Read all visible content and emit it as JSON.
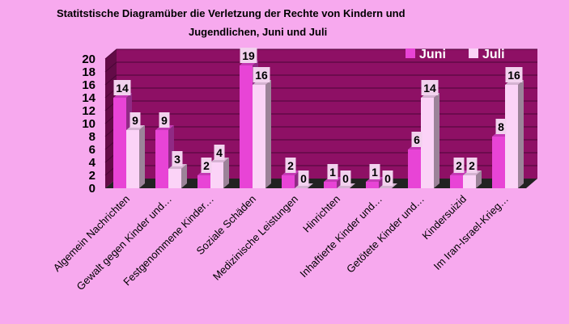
{
  "chart_data": {
    "type": "bar",
    "title_line1": "Statitstische Diagramüber die Verletzung der Rechte von Kindern und",
    "title_line2": "Jugendlichen,  Juni und Juli",
    "categories": [
      "Algemein Nachrichten",
      "Gewalt gegen Kinder und…",
      "Festgenommene Kinder…",
      "Soziale Schäden",
      "Medizinische Leistungen",
      "Hinrichten",
      "Inhaftierte Kinder und…",
      "Getötete Kinder und…",
      "Kindersuizid",
      "Im Iran-Israel-Krieg…"
    ],
    "series": [
      {
        "name": "Juni",
        "values": [
          14,
          9,
          2,
          19,
          2,
          1,
          1,
          6,
          2,
          8
        ],
        "color": "#e844d6"
      },
      {
        "name": "Juli",
        "values": [
          9,
          3,
          4,
          16,
          0,
          0,
          0,
          14,
          2,
          16
        ],
        "color": "#fbd3f7"
      }
    ],
    "ylim": [
      0,
      20
    ],
    "yticks": [
      "0",
      "2",
      "4",
      "6",
      "8",
      "10",
      "12",
      "14",
      "16",
      "18",
      "20"
    ],
    "grid": true,
    "legend_position": "top-right",
    "colors": {
      "background": "#f7a9ee",
      "plot_area": "#8e1065",
      "floor": "#222222",
      "gridline": "#4a0636"
    }
  }
}
